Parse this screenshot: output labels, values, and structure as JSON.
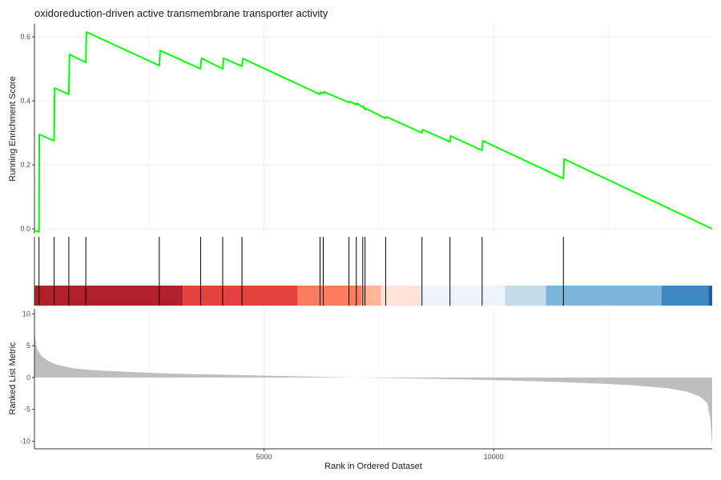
{
  "chart_data": {
    "type": "line",
    "title": "oxidoreduction-driven active transmembrane transporter activity",
    "x_axis": {
      "label": "Rank in Ordered Dataset",
      "range": [
        1,
        14760
      ],
      "ticks": [
        5000,
        10000
      ],
      "tick_labels": [
        "5000",
        "10000"
      ],
      "minor_gridlines": [
        2500,
        7500,
        12500
      ]
    },
    "panels": [
      {
        "name": "running-enrichment",
        "ylabel": "Running Enrichment Score",
        "ylim": [
          -0.015,
          0.64
        ],
        "yticks": [
          0.0,
          0.2,
          0.4,
          0.6
        ],
        "ytick_labels": [
          "0.0",
          "0.2",
          "0.4",
          "0.6"
        ],
        "line_color": "#00ff00",
        "series": [
          {
            "x": [
              1,
              100,
              105,
              430,
              440,
              750,
              765,
              1120,
              1135,
              2720,
              2740,
              3620,
              3640,
              4100,
              4120,
              4520,
              4540,
              6220,
              6230,
              6290,
              6305,
              6850,
              6880,
              7010,
              7025,
              7150,
              7160,
              7200,
              7215,
              7650,
              7665,
              8440,
              8455,
              9050,
              9065,
              9750,
              9765,
              11520,
              11535,
              14760
            ],
            "y": [
              -0.005,
              -0.01,
              0.295,
              0.275,
              0.44,
              0.42,
              0.545,
              0.52,
              0.615,
              0.51,
              0.557,
              0.5,
              0.533,
              0.5,
              0.533,
              0.508,
              0.532,
              0.42,
              0.427,
              0.423,
              0.428,
              0.395,
              0.397,
              0.388,
              0.392,
              0.38,
              0.383,
              0.372,
              0.376,
              0.345,
              0.35,
              0.3,
              0.31,
              0.272,
              0.29,
              0.245,
              0.275,
              0.157,
              0.218,
              0.0
            ]
          }
        ]
      },
      {
        "name": "gene-hits",
        "hits": [
          100,
          430,
          750,
          1120,
          2720,
          3620,
          4100,
          4520,
          6220,
          6290,
          6850,
          7010,
          7150,
          7200,
          7650,
          8440,
          9050,
          9750,
          11520
        ],
        "hit_color": "#000000",
        "color_bar": [
          {
            "from": 1,
            "to": 3230,
            "color": "#b2202a"
          },
          {
            "from": 3230,
            "to": 5730,
            "color": "#e5413f"
          },
          {
            "from": 5730,
            "to": 7120,
            "color": "#fb7c5f"
          },
          {
            "from": 7120,
            "to": 7550,
            "color": "#fcb49a"
          },
          {
            "from": 7550,
            "to": 8420,
            "color": "#fee2d6"
          },
          {
            "from": 8420,
            "to": 10250,
            "color": "#eff3fb"
          },
          {
            "from": 10250,
            "to": 11140,
            "color": "#c4dcea"
          },
          {
            "from": 11140,
            "to": 13660,
            "color": "#7cb5d9"
          },
          {
            "from": 13660,
            "to": 14680,
            "color": "#3f88c4"
          },
          {
            "from": 14680,
            "to": 14760,
            "color": "#1b5fa8"
          }
        ]
      },
      {
        "name": "ranked-list-metric",
        "ylabel": "Ranked List Metric",
        "ylim": [
          -11.2,
          10.8
        ],
        "yticks": [
          10,
          5,
          0,
          -5,
          -10
        ],
        "ytick_labels": [
          "10",
          "5",
          "0",
          "-5",
          "-10"
        ],
        "fill_color": "#bebebe",
        "series": [
          {
            "x": [
              1,
              20,
              60,
              150,
              300,
              500,
              800,
              1200,
              2000,
              3000,
              4000,
              5000,
              6000,
              7000,
              8000,
              9000,
              10000,
              11000,
              12000,
              13000,
              13800,
              14200,
              14500,
              14650,
              14720,
              14760
            ],
            "y": [
              8.0,
              6.0,
              4.5,
              3.4,
              2.6,
              2.0,
              1.5,
              1.2,
              0.9,
              0.6,
              0.45,
              0.3,
              0.15,
              0.0,
              -0.12,
              -0.25,
              -0.4,
              -0.6,
              -0.85,
              -1.2,
              -1.7,
              -2.2,
              -3.0,
              -4.0,
              -6.5,
              -11.0
            ]
          }
        ]
      }
    ]
  }
}
